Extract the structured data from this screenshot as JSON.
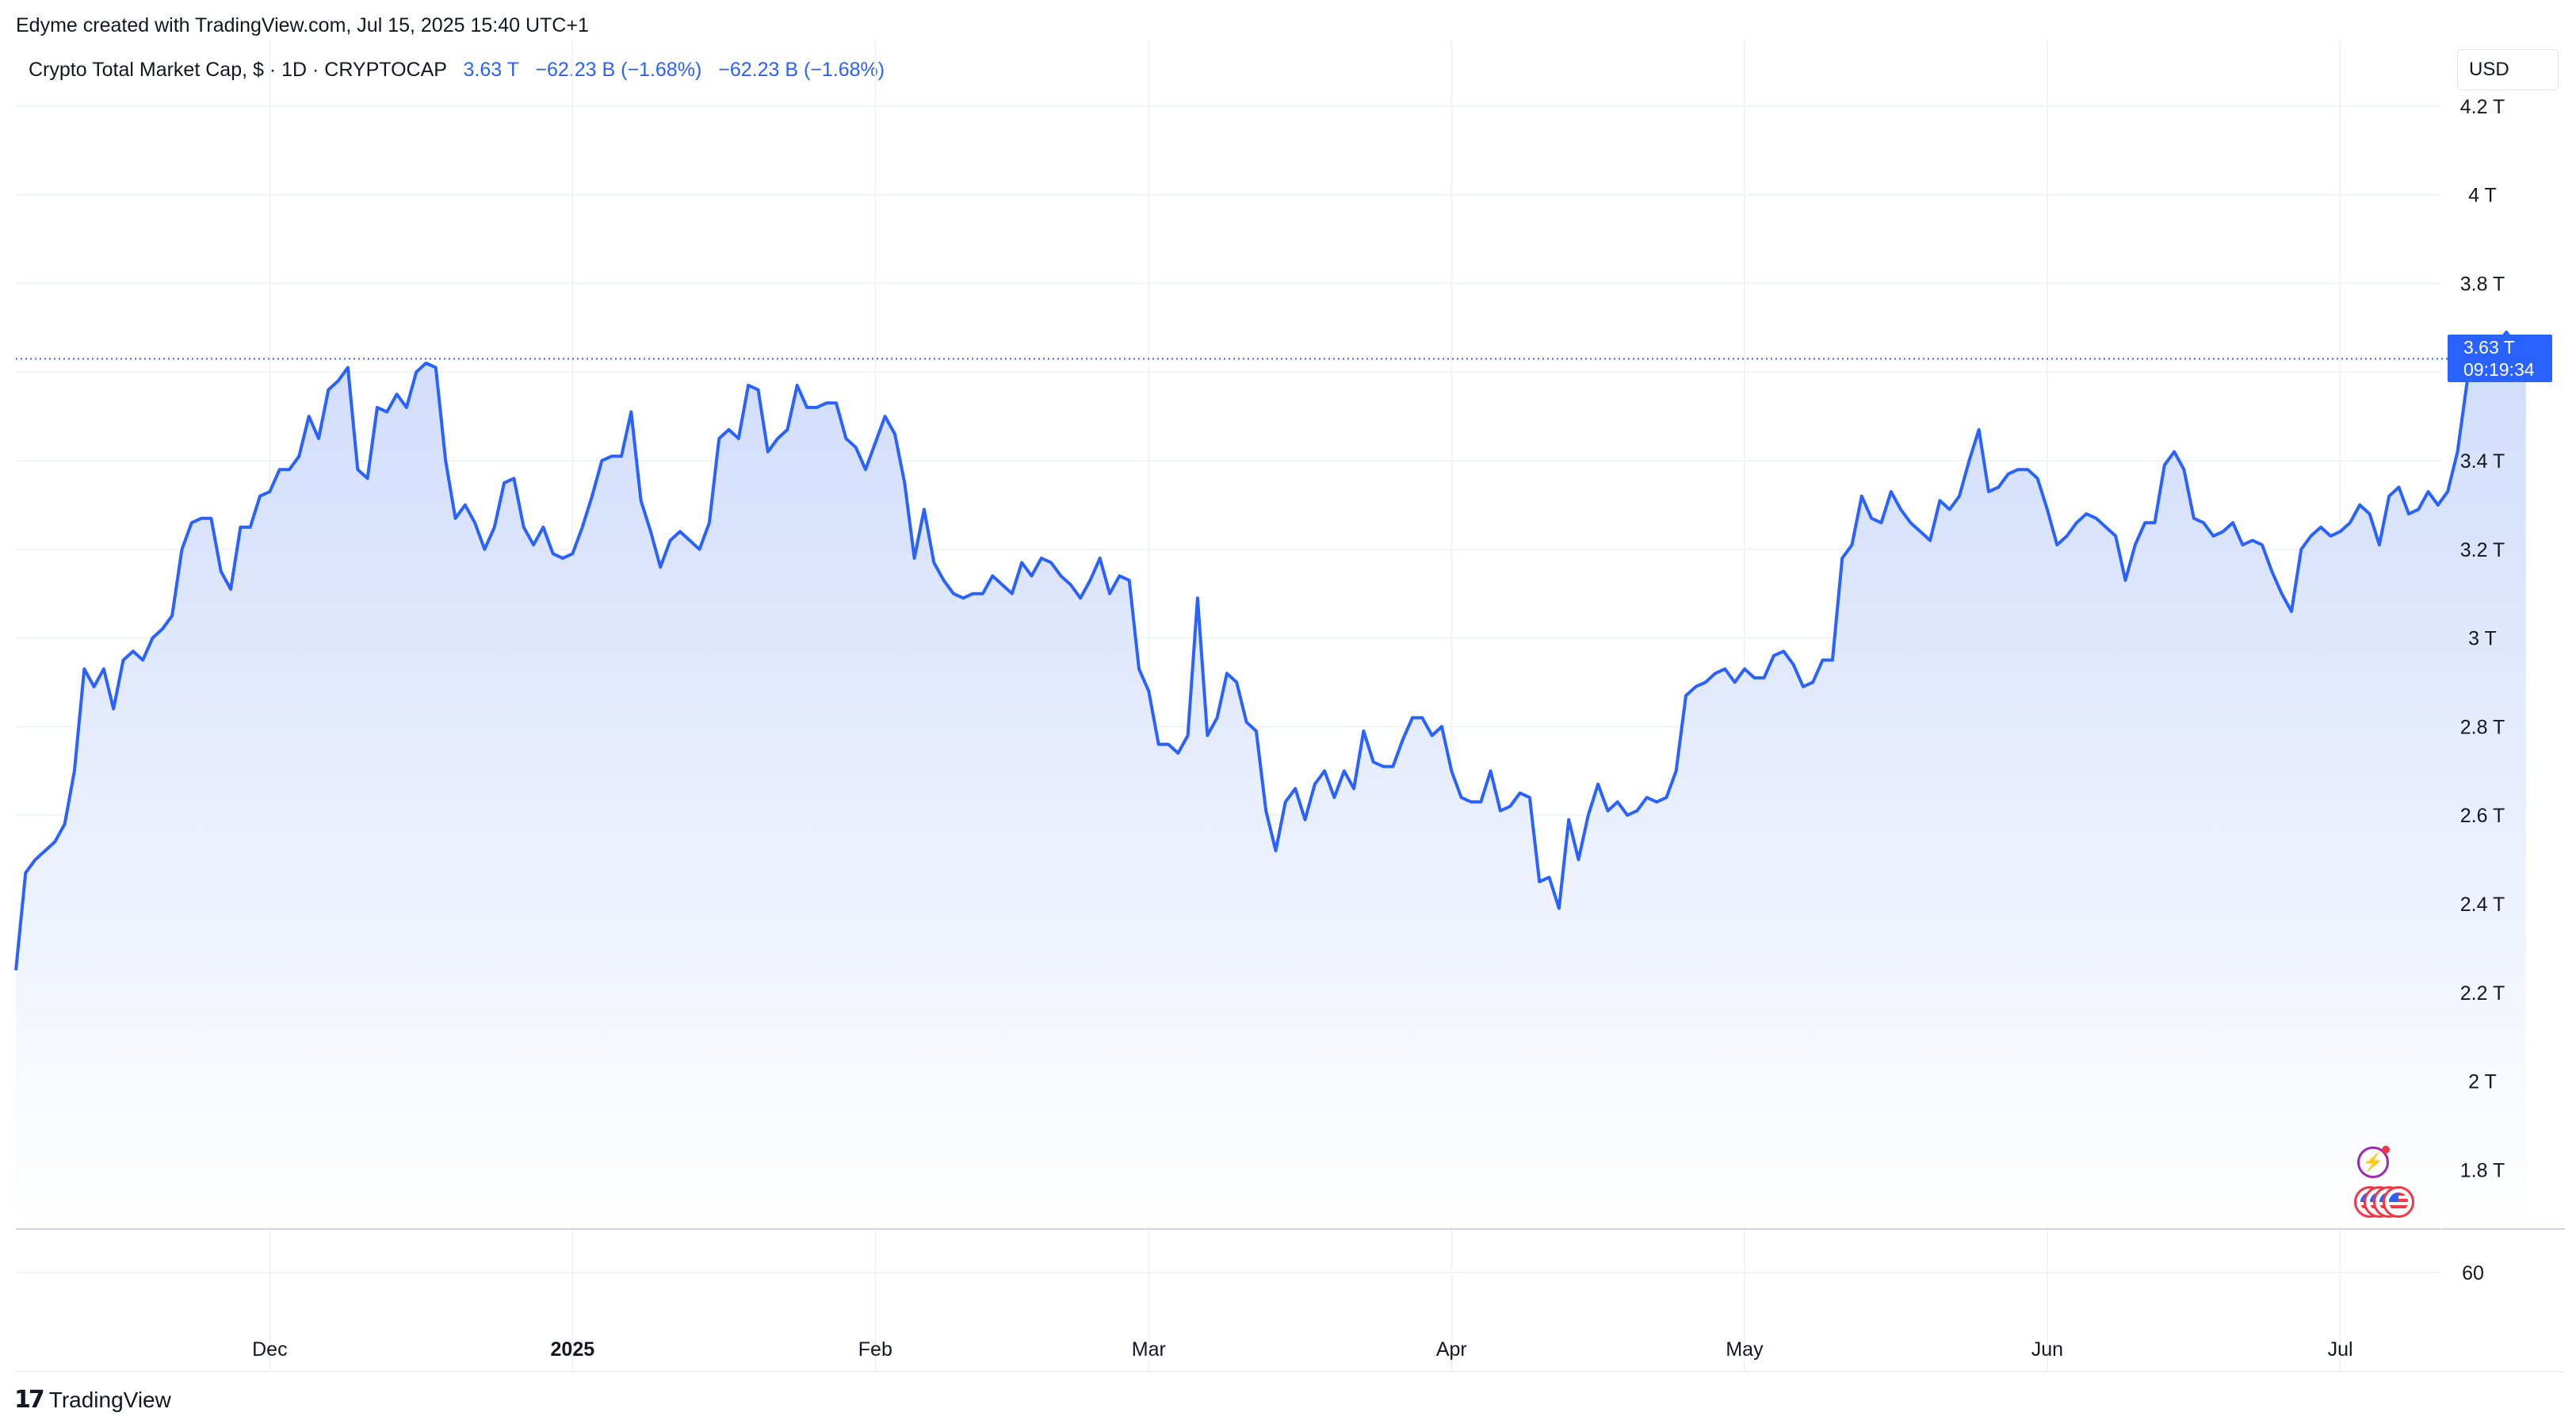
{
  "header": {
    "attribution": "Edyme created with TradingView.com, Jul 15, 2025 15:40 UTC+1"
  },
  "legend": {
    "symbol": "Crypto Total Market Cap, $ · 1D · CRYPTOCAP",
    "last": "3.63 T",
    "change": "−62.23 B (−1.68%)",
    "change2": "−62.23 B (−1.68%)"
  },
  "currency_label": "USD",
  "last_price_badge": {
    "price": "3.63 T",
    "countdown": "09:19:34"
  },
  "brand": {
    "logo_mark": "17",
    "name": "TradingView"
  },
  "colors": {
    "line": "#2962ff",
    "fill_top": "#d0dcfb",
    "fill_bottom": "#ffffff",
    "grid": "#f0f3fa",
    "badge": "#2962ff"
  },
  "chart_data": {
    "type": "area",
    "title": "Crypto Total Market Cap, $ · 1D · CRYPTOCAP",
    "xlabel": "",
    "ylabel": "",
    "y_unit": "T",
    "ylim": [
      1.67,
      4.35
    ],
    "y_ticks": [
      1.8,
      2.0,
      2.2,
      2.4,
      2.6,
      2.8,
      3.0,
      3.2,
      3.4,
      3.6,
      3.8,
      4.0,
      4.2
    ],
    "y_tick_labels": [
      "1.8 T",
      "2 T",
      "2.2 T",
      "2.4 T",
      "2.6 T",
      "2.8 T",
      "3 T",
      "3.2 T",
      "3.4 T",
      "3.6 T",
      "3.8 T",
      "4 T",
      "4.2 T"
    ],
    "x_range": [
      "2024-11-05",
      "2025-07-24"
    ],
    "x_ticks": [
      {
        "date": "2024-12-01",
        "label": "Dec",
        "bold": false
      },
      {
        "date": "2025-01-01",
        "label": "2025",
        "bold": true
      },
      {
        "date": "2025-02-01",
        "label": "Feb",
        "bold": false
      },
      {
        "date": "2025-03-01",
        "label": "Mar",
        "bold": false
      },
      {
        "date": "2025-04-01",
        "label": "Apr",
        "bold": false
      },
      {
        "date": "2025-05-01",
        "label": "May",
        "bold": false
      },
      {
        "date": "2025-06-01",
        "label": "Jun",
        "bold": false
      },
      {
        "date": "2025-07-01",
        "label": "Jul",
        "bold": false
      }
    ],
    "volume_pane": {
      "tick_labels": [
        "60"
      ]
    },
    "last_value": 3.63,
    "grid": true,
    "series": [
      {
        "points": [
          [
            "2024-11-05",
            2.25
          ],
          [
            "2024-11-06",
            2.47
          ],
          [
            "2024-11-07",
            2.5
          ],
          [
            "2024-11-08",
            2.52
          ],
          [
            "2024-11-09",
            2.54
          ],
          [
            "2024-11-10",
            2.58
          ],
          [
            "2024-11-11",
            2.7
          ],
          [
            "2024-11-12",
            2.93
          ],
          [
            "2024-11-13",
            2.89
          ],
          [
            "2024-11-14",
            2.93
          ],
          [
            "2024-11-15",
            2.84
          ],
          [
            "2024-11-16",
            2.95
          ],
          [
            "2024-11-17",
            2.97
          ],
          [
            "2024-11-18",
            2.95
          ],
          [
            "2024-11-19",
            3.0
          ],
          [
            "2024-11-20",
            3.02
          ],
          [
            "2024-11-21",
            3.05
          ],
          [
            "2024-11-22",
            3.2
          ],
          [
            "2024-11-23",
            3.26
          ],
          [
            "2024-11-24",
            3.27
          ],
          [
            "2024-11-25",
            3.27
          ],
          [
            "2024-11-26",
            3.15
          ],
          [
            "2024-11-27",
            3.11
          ],
          [
            "2024-11-28",
            3.25
          ],
          [
            "2024-11-29",
            3.25
          ],
          [
            "2024-11-30",
            3.32
          ],
          [
            "2024-12-01",
            3.33
          ],
          [
            "2024-12-02",
            3.38
          ],
          [
            "2024-12-03",
            3.38
          ],
          [
            "2024-12-04",
            3.41
          ],
          [
            "2024-12-05",
            3.5
          ],
          [
            "2024-12-06",
            3.45
          ],
          [
            "2024-12-07",
            3.56
          ],
          [
            "2024-12-08",
            3.58
          ],
          [
            "2024-12-09",
            3.61
          ],
          [
            "2024-12-10",
            3.38
          ],
          [
            "2024-12-11",
            3.36
          ],
          [
            "2024-12-12",
            3.52
          ],
          [
            "2024-12-13",
            3.51
          ],
          [
            "2024-12-14",
            3.55
          ],
          [
            "2024-12-15",
            3.52
          ],
          [
            "2024-12-16",
            3.6
          ],
          [
            "2024-12-17",
            3.62
          ],
          [
            "2024-12-18",
            3.61
          ],
          [
            "2024-12-19",
            3.4
          ],
          [
            "2024-12-20",
            3.27
          ],
          [
            "2024-12-21",
            3.3
          ],
          [
            "2024-12-22",
            3.26
          ],
          [
            "2024-12-23",
            3.2
          ],
          [
            "2024-12-24",
            3.25
          ],
          [
            "2024-12-25",
            3.35
          ],
          [
            "2024-12-26",
            3.36
          ],
          [
            "2024-12-27",
            3.25
          ],
          [
            "2024-12-28",
            3.21
          ],
          [
            "2024-12-29",
            3.25
          ],
          [
            "2024-12-30",
            3.19
          ],
          [
            "2024-12-31",
            3.18
          ],
          [
            "2025-01-01",
            3.19
          ],
          [
            "2025-01-02",
            3.25
          ],
          [
            "2025-01-03",
            3.32
          ],
          [
            "2025-01-04",
            3.4
          ],
          [
            "2025-01-05",
            3.41
          ],
          [
            "2025-01-06",
            3.41
          ],
          [
            "2025-01-07",
            3.51
          ],
          [
            "2025-01-08",
            3.31
          ],
          [
            "2025-01-09",
            3.24
          ],
          [
            "2025-01-10",
            3.16
          ],
          [
            "2025-01-11",
            3.22
          ],
          [
            "2025-01-12",
            3.24
          ],
          [
            "2025-01-13",
            3.22
          ],
          [
            "2025-01-14",
            3.2
          ],
          [
            "2025-01-15",
            3.26
          ],
          [
            "2025-01-16",
            3.45
          ],
          [
            "2025-01-17",
            3.47
          ],
          [
            "2025-01-18",
            3.45
          ],
          [
            "2025-01-19",
            3.57
          ],
          [
            "2025-01-20",
            3.56
          ],
          [
            "2025-01-21",
            3.42
          ],
          [
            "2025-01-22",
            3.45
          ],
          [
            "2025-01-23",
            3.47
          ],
          [
            "2025-01-24",
            3.57
          ],
          [
            "2025-01-25",
            3.52
          ],
          [
            "2025-01-26",
            3.52
          ],
          [
            "2025-01-27",
            3.53
          ],
          [
            "2025-01-28",
            3.53
          ],
          [
            "2025-01-29",
            3.45
          ],
          [
            "2025-01-30",
            3.43
          ],
          [
            "2025-01-31",
            3.38
          ],
          [
            "2025-02-01",
            3.44
          ],
          [
            "2025-02-02",
            3.5
          ],
          [
            "2025-02-03",
            3.46
          ],
          [
            "2025-02-04",
            3.35
          ],
          [
            "2025-02-05",
            3.18
          ],
          [
            "2025-02-06",
            3.29
          ],
          [
            "2025-02-07",
            3.17
          ],
          [
            "2025-02-08",
            3.13
          ],
          [
            "2025-02-09",
            3.1
          ],
          [
            "2025-02-10",
            3.09
          ],
          [
            "2025-02-11",
            3.1
          ],
          [
            "2025-02-12",
            3.1
          ],
          [
            "2025-02-13",
            3.14
          ],
          [
            "2025-02-14",
            3.12
          ],
          [
            "2025-02-15",
            3.1
          ],
          [
            "2025-02-16",
            3.17
          ],
          [
            "2025-02-17",
            3.14
          ],
          [
            "2025-02-18",
            3.18
          ],
          [
            "2025-02-19",
            3.17
          ],
          [
            "2025-02-20",
            3.14
          ],
          [
            "2025-02-21",
            3.12
          ],
          [
            "2025-02-22",
            3.09
          ],
          [
            "2025-02-23",
            3.13
          ],
          [
            "2025-02-24",
            3.18
          ],
          [
            "2025-02-25",
            3.1
          ],
          [
            "2025-02-26",
            3.14
          ],
          [
            "2025-02-27",
            3.13
          ],
          [
            "2025-02-28",
            2.93
          ],
          [
            "2025-03-01",
            2.88
          ],
          [
            "2025-03-02",
            2.76
          ],
          [
            "2025-03-03",
            2.76
          ],
          [
            "2025-03-04",
            2.74
          ],
          [
            "2025-03-05",
            2.78
          ],
          [
            "2025-03-06",
            3.09
          ],
          [
            "2025-03-07",
            2.78
          ],
          [
            "2025-03-08",
            2.82
          ],
          [
            "2025-03-09",
            2.92
          ],
          [
            "2025-03-10",
            2.9
          ],
          [
            "2025-03-11",
            2.81
          ],
          [
            "2025-03-12",
            2.79
          ],
          [
            "2025-03-13",
            2.61
          ],
          [
            "2025-03-14",
            2.52
          ],
          [
            "2025-03-15",
            2.63
          ],
          [
            "2025-03-16",
            2.66
          ],
          [
            "2025-03-17",
            2.59
          ],
          [
            "2025-03-18",
            2.67
          ],
          [
            "2025-03-19",
            2.7
          ],
          [
            "2025-03-20",
            2.64
          ],
          [
            "2025-03-21",
            2.7
          ],
          [
            "2025-03-22",
            2.66
          ],
          [
            "2025-03-23",
            2.79
          ],
          [
            "2025-03-24",
            2.72
          ],
          [
            "2025-03-25",
            2.71
          ],
          [
            "2025-03-26",
            2.71
          ],
          [
            "2025-03-27",
            2.77
          ],
          [
            "2025-03-28",
            2.82
          ],
          [
            "2025-03-29",
            2.82
          ],
          [
            "2025-03-30",
            2.78
          ],
          [
            "2025-03-31",
            2.8
          ],
          [
            "2025-04-01",
            2.7
          ],
          [
            "2025-04-02",
            2.64
          ],
          [
            "2025-04-03",
            2.63
          ],
          [
            "2025-04-04",
            2.63
          ],
          [
            "2025-04-05",
            2.7
          ],
          [
            "2025-04-06",
            2.61
          ],
          [
            "2025-04-07",
            2.62
          ],
          [
            "2025-04-08",
            2.65
          ],
          [
            "2025-04-09",
            2.64
          ],
          [
            "2025-04-10",
            2.45
          ],
          [
            "2025-04-11",
            2.46
          ],
          [
            "2025-04-12",
            2.39
          ],
          [
            "2025-04-13",
            2.59
          ],
          [
            "2025-04-14",
            2.5
          ],
          [
            "2025-04-15",
            2.6
          ],
          [
            "2025-04-16",
            2.67
          ],
          [
            "2025-04-17",
            2.61
          ],
          [
            "2025-04-18",
            2.63
          ],
          [
            "2025-04-19",
            2.6
          ],
          [
            "2025-04-20",
            2.61
          ],
          [
            "2025-04-21",
            2.64
          ],
          [
            "2025-04-22",
            2.63
          ],
          [
            "2025-04-23",
            2.64
          ],
          [
            "2025-04-24",
            2.7
          ],
          [
            "2025-04-25",
            2.87
          ],
          [
            "2025-04-26",
            2.89
          ],
          [
            "2025-04-27",
            2.9
          ],
          [
            "2025-04-28",
            2.92
          ],
          [
            "2025-04-29",
            2.93
          ],
          [
            "2025-04-30",
            2.9
          ],
          [
            "2025-05-01",
            2.93
          ],
          [
            "2025-05-02",
            2.91
          ],
          [
            "2025-05-03",
            2.91
          ],
          [
            "2025-05-04",
            2.96
          ],
          [
            "2025-05-05",
            2.97
          ],
          [
            "2025-05-06",
            2.94
          ],
          [
            "2025-05-07",
            2.89
          ],
          [
            "2025-05-08",
            2.9
          ],
          [
            "2025-05-09",
            2.95
          ],
          [
            "2025-05-10",
            2.95
          ],
          [
            "2025-05-11",
            3.18
          ],
          [
            "2025-05-12",
            3.21
          ],
          [
            "2025-05-13",
            3.32
          ],
          [
            "2025-05-14",
            3.27
          ],
          [
            "2025-05-15",
            3.26
          ],
          [
            "2025-05-16",
            3.33
          ],
          [
            "2025-05-17",
            3.29
          ],
          [
            "2025-05-18",
            3.26
          ],
          [
            "2025-05-19",
            3.24
          ],
          [
            "2025-05-20",
            3.22
          ],
          [
            "2025-05-21",
            3.31
          ],
          [
            "2025-05-22",
            3.29
          ],
          [
            "2025-05-23",
            3.32
          ],
          [
            "2025-05-24",
            3.4
          ],
          [
            "2025-05-25",
            3.47
          ],
          [
            "2025-05-26",
            3.33
          ],
          [
            "2025-05-27",
            3.34
          ],
          [
            "2025-05-28",
            3.37
          ],
          [
            "2025-05-29",
            3.38
          ],
          [
            "2025-05-30",
            3.38
          ],
          [
            "2025-05-31",
            3.36
          ],
          [
            "2025-06-01",
            3.29
          ],
          [
            "2025-06-02",
            3.21
          ],
          [
            "2025-06-03",
            3.23
          ],
          [
            "2025-06-04",
            3.26
          ],
          [
            "2025-06-05",
            3.28
          ],
          [
            "2025-06-06",
            3.27
          ],
          [
            "2025-06-07",
            3.25
          ],
          [
            "2025-06-08",
            3.23
          ],
          [
            "2025-06-09",
            3.13
          ],
          [
            "2025-06-10",
            3.21
          ],
          [
            "2025-06-11",
            3.26
          ],
          [
            "2025-06-12",
            3.26
          ],
          [
            "2025-06-13",
            3.39
          ],
          [
            "2025-06-14",
            3.42
          ],
          [
            "2025-06-15",
            3.38
          ],
          [
            "2025-06-16",
            3.27
          ],
          [
            "2025-06-17",
            3.26
          ],
          [
            "2025-06-18",
            3.23
          ],
          [
            "2025-06-19",
            3.24
          ],
          [
            "2025-06-20",
            3.26
          ],
          [
            "2025-06-21",
            3.21
          ],
          [
            "2025-06-22",
            3.22
          ],
          [
            "2025-06-23",
            3.21
          ],
          [
            "2025-06-24",
            3.15
          ],
          [
            "2025-06-25",
            3.1
          ],
          [
            "2025-06-26",
            3.06
          ],
          [
            "2025-06-27",
            3.2
          ],
          [
            "2025-06-28",
            3.23
          ],
          [
            "2025-06-29",
            3.25
          ],
          [
            "2025-06-30",
            3.23
          ],
          [
            "2025-07-01",
            3.24
          ],
          [
            "2025-07-02",
            3.26
          ],
          [
            "2025-07-03",
            3.3
          ],
          [
            "2025-07-04",
            3.28
          ],
          [
            "2025-07-05",
            3.21
          ],
          [
            "2025-07-06",
            3.32
          ],
          [
            "2025-07-07",
            3.34
          ],
          [
            "2025-07-08",
            3.28
          ],
          [
            "2025-07-09",
            3.29
          ],
          [
            "2025-07-10",
            3.33
          ],
          [
            "2025-07-11",
            3.3
          ],
          [
            "2025-07-12",
            3.33
          ],
          [
            "2025-07-13",
            3.42
          ],
          [
            "2025-07-14",
            3.58
          ],
          [
            "2025-07-15",
            3.62
          ],
          [
            "2025-07-16",
            3.62
          ],
          [
            "2025-07-17",
            3.66
          ],
          [
            "2025-07-18",
            3.69
          ],
          [
            "2025-07-19",
            3.66
          ],
          [
            "2025-07-20",
            3.63
          ]
        ]
      }
    ]
  }
}
